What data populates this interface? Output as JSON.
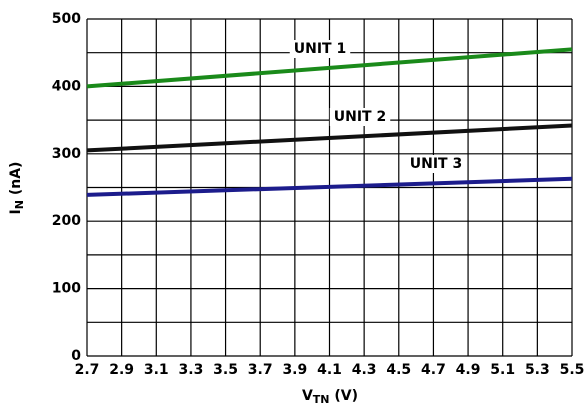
{
  "chart_data": {
    "type": "line",
    "xlabel": [
      "V",
      "TN",
      " (V)"
    ],
    "ylabel": [
      "I",
      "N",
      " (nA)"
    ],
    "x": [
      2.7,
      5.5
    ],
    "series": [
      {
        "name": "UNIT 1",
        "color": "#1a8a1a",
        "values": [
          400,
          455
        ]
      },
      {
        "name": "UNIT 2",
        "color": "#111111",
        "values": [
          305,
          342
        ]
      },
      {
        "name": "UNIT 3",
        "color": "#1c1c8c",
        "values": [
          239,
          263
        ]
      }
    ],
    "xlim": [
      2.7,
      5.5
    ],
    "xticks": [
      2.7,
      2.9,
      3.1,
      3.3,
      3.5,
      3.7,
      3.9,
      4.1,
      4.3,
      4.5,
      4.7,
      4.9,
      5.1,
      5.3,
      5.5
    ],
    "ylim": [
      0,
      500
    ],
    "yticks": [
      0,
      100,
      200,
      300,
      400,
      500
    ],
    "minor_yticks": [
      50,
      150,
      250,
      350,
      450
    ],
    "grid": true
  }
}
